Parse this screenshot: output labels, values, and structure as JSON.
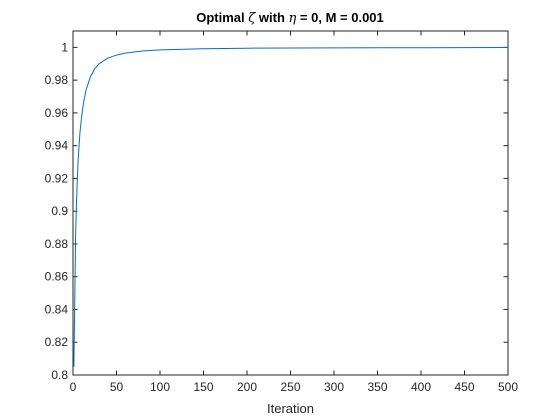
{
  "chart_data": {
    "type": "line",
    "title": {
      "prefix": "Optimal ",
      "zeta": "ζ",
      "middle": " with ",
      "eta": "η",
      "suffix": " = 0, M = 0.001"
    },
    "xlabel": "Iteration",
    "ylabel": "",
    "xlim": [
      0,
      500
    ],
    "ylim": [
      0.8,
      1.01
    ],
    "xticks": [
      "0",
      "50",
      "100",
      "150",
      "200",
      "250",
      "300",
      "350",
      "400",
      "450",
      "500"
    ],
    "yticks": [
      "0.8",
      "0.82",
      "0.84",
      "0.86",
      "0.88",
      "0.9",
      "0.92",
      "0.94",
      "0.96",
      "0.98",
      "1"
    ],
    "grid": false,
    "legend": "none",
    "series": [
      {
        "color": "#0072bd",
        "x": [
          1,
          2,
          3,
          4,
          5,
          6,
          8,
          10,
          12,
          15,
          20,
          25,
          30,
          40,
          50,
          60,
          80,
          100,
          150,
          200,
          300,
          400,
          500
        ],
        "y": [
          0.805,
          0.845,
          0.885,
          0.905,
          0.92,
          0.932,
          0.948,
          0.958,
          0.966,
          0.974,
          0.982,
          0.987,
          0.99,
          0.9935,
          0.9953,
          0.9965,
          0.9978,
          0.9985,
          0.9992,
          0.9995,
          0.9997,
          0.9998,
          0.9999
        ]
      }
    ]
  }
}
